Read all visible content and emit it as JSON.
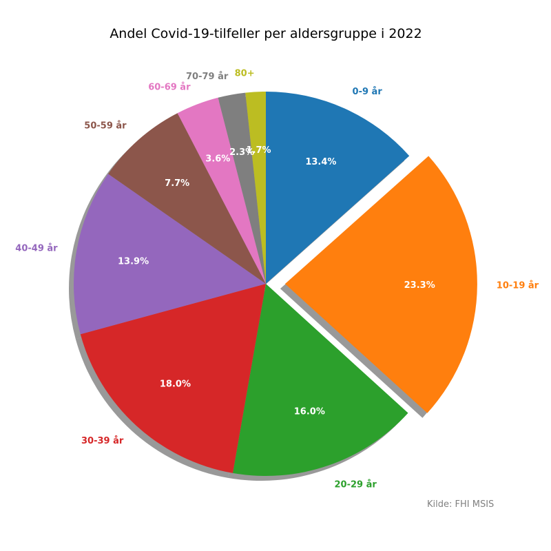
{
  "chart_data": {
    "type": "pie",
    "title": "Andel Covid-19-tilfeller per aldersgruppe i 2022",
    "categories": [
      "0-9 år",
      "10-19 år",
      "20-29 år",
      "30-39 år",
      "40-49 år",
      "50-59 år",
      "60-69 år",
      "70-79 år",
      "80+"
    ],
    "values": [
      13.4,
      23.3,
      16.0,
      18.0,
      13.9,
      7.7,
      3.6,
      2.3,
      1.7
    ],
    "value_labels": [
      "13.4%",
      "23.3%",
      "16.0%",
      "18.0%",
      "13.9%",
      "7.7%",
      "3.6%",
      "2.3%",
      "1.7%"
    ],
    "colors": [
      "#1f77b4",
      "#ff7f0e",
      "#2ca02c",
      "#d62728",
      "#9467bd",
      "#8c564b",
      "#e377c2",
      "#7f7f7f",
      "#bcbd22"
    ],
    "exploded": [
      "10-19 år"
    ],
    "start_angle": 90,
    "direction": "clockwise",
    "shadow": true,
    "source_note": "Kilde: FHI MSIS"
  }
}
